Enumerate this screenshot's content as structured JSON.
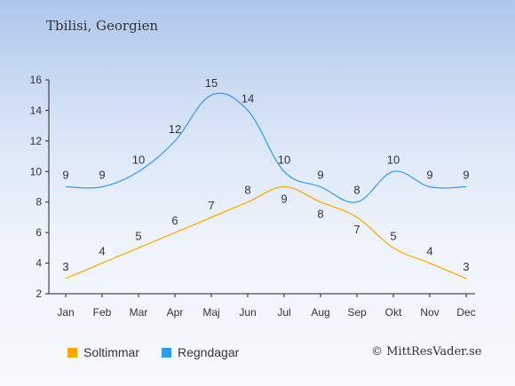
{
  "title": "Tbilisi, Georgien",
  "credit": "© MittResVader.se",
  "chart_data": {
    "type": "line",
    "categories": [
      "Jan",
      "Feb",
      "Mar",
      "Apr",
      "Maj",
      "Jun",
      "Jul",
      "Aug",
      "Sep",
      "Okt",
      "Nov",
      "Dec"
    ],
    "ylim": [
      2,
      16
    ],
    "yticks": [
      2,
      4,
      6,
      8,
      10,
      12,
      14,
      16
    ],
    "grid": false,
    "legend_position": "bottom-left",
    "series": [
      {
        "name": "Soltimmar",
        "color": "#ffa500",
        "values": [
          3,
          4,
          5,
          6,
          7,
          8,
          9,
          8,
          7,
          5,
          4,
          3
        ]
      },
      {
        "name": "Regndagar",
        "color": "#3399ee",
        "values": [
          9,
          9,
          10,
          12,
          15,
          14,
          10,
          9,
          8,
          10,
          9,
          9
        ]
      }
    ]
  }
}
